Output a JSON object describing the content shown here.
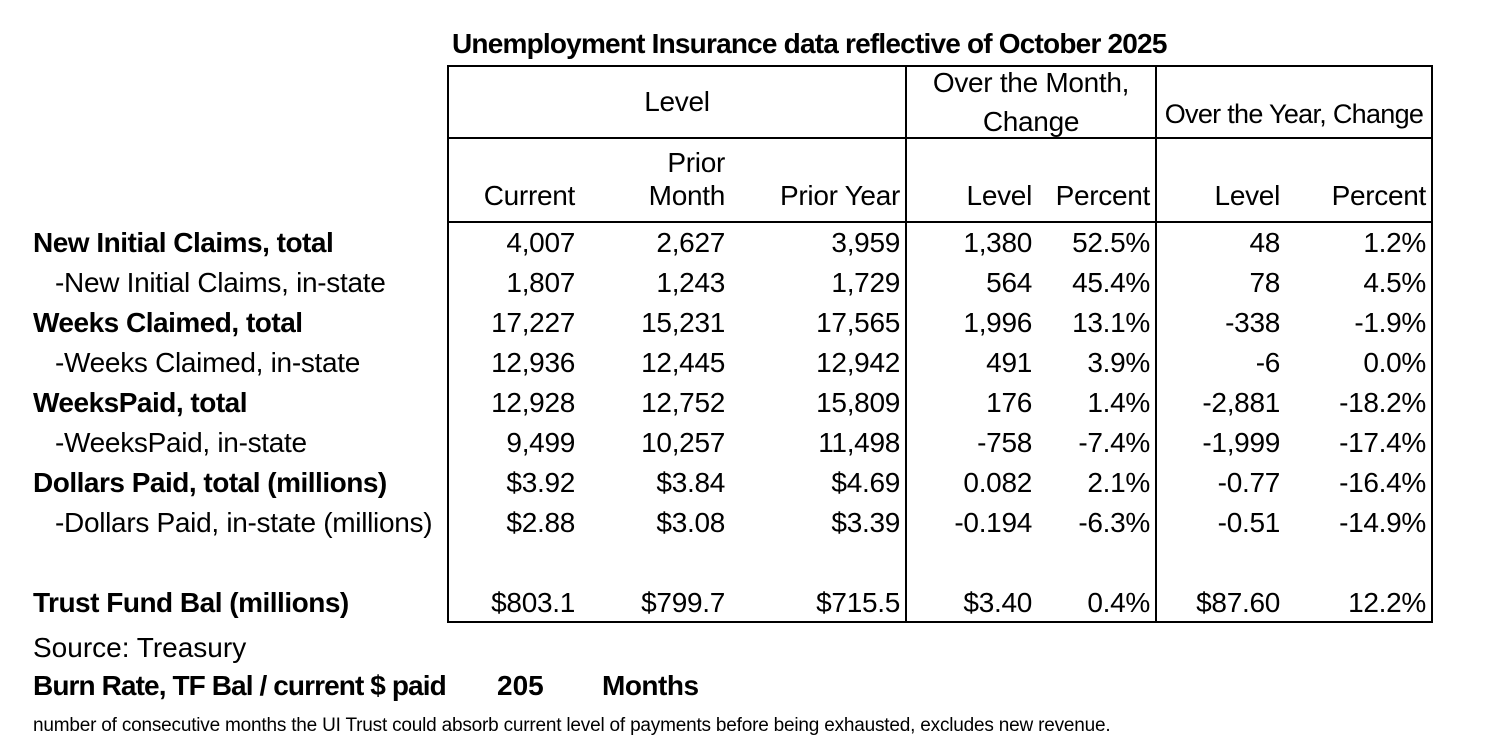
{
  "title": "Unemployment Insurance data reflective of October 2025",
  "table": {
    "group_headers": {
      "level": "Level",
      "over_month": "Over the Month, Change",
      "over_year": "Over the Year, Change"
    },
    "sub_headers": [
      "Current",
      "Prior Month",
      "Prior Year",
      "Level",
      "Percent",
      "Level",
      "Percent"
    ],
    "rows": [
      {
        "label": "New Initial Claims, total",
        "values": [
          "4,007",
          "2,627",
          "3,959",
          "1,380",
          "52.5%",
          "48",
          "1.2%"
        ]
      },
      {
        "label": "-New Initial Claims, in-state",
        "values": [
          "1,807",
          "1,243",
          "1,729",
          "564",
          "45.4%",
          "78",
          "4.5%"
        ]
      },
      {
        "label": "Weeks Claimed, total",
        "values": [
          "17,227",
          "15,231",
          "17,565",
          "1,996",
          "13.1%",
          "-338",
          "-1.9%"
        ]
      },
      {
        "label": "-Weeks Claimed, in-state",
        "values": [
          "12,936",
          "12,445",
          "12,942",
          "491",
          "3.9%",
          "-6",
          "0.0%"
        ]
      },
      {
        "label": "WeeksPaid, total",
        "values": [
          "12,928",
          "12,752",
          "15,809",
          "176",
          "1.4%",
          "-2,881",
          "-18.2%"
        ]
      },
      {
        "label": "-WeeksPaid, in-state",
        "values": [
          "9,499",
          "10,257",
          "11,498",
          "-758",
          "-7.4%",
          "-1,999",
          "-17.4%"
        ]
      },
      {
        "label": "Dollars Paid, total (millions)",
        "values": [
          "$3.92",
          "$3.84",
          "$4.69",
          "0.082",
          "2.1%",
          "-0.77",
          "-16.4%"
        ]
      },
      {
        "label": "-Dollars Paid, in-state (millions)",
        "values": [
          "$2.88",
          "$3.08",
          "$3.39",
          "-0.194",
          "-6.3%",
          "-0.51",
          "-14.9%"
        ]
      },
      {
        "label": "",
        "values": [
          "",
          "",
          "",
          "",
          "",
          "",
          ""
        ]
      },
      {
        "label": "Trust Fund Bal (millions)",
        "values": [
          "$803.1",
          "$799.7",
          "$715.5",
          "$3.40",
          "0.4%",
          "$87.60",
          "12.2%"
        ]
      }
    ]
  },
  "footer": {
    "source": "Source: Treasury",
    "burn_rate_label": "Burn Rate, TF Bal / current $ paid",
    "burn_rate_value": "205",
    "burn_rate_unit": "Months",
    "note": "number of consecutive months the UI Trust could absorb current level of payments before being exhausted, excludes new revenue."
  },
  "colors": {
    "text": "#000000",
    "background": "#ffffff",
    "border": "#000000"
  }
}
